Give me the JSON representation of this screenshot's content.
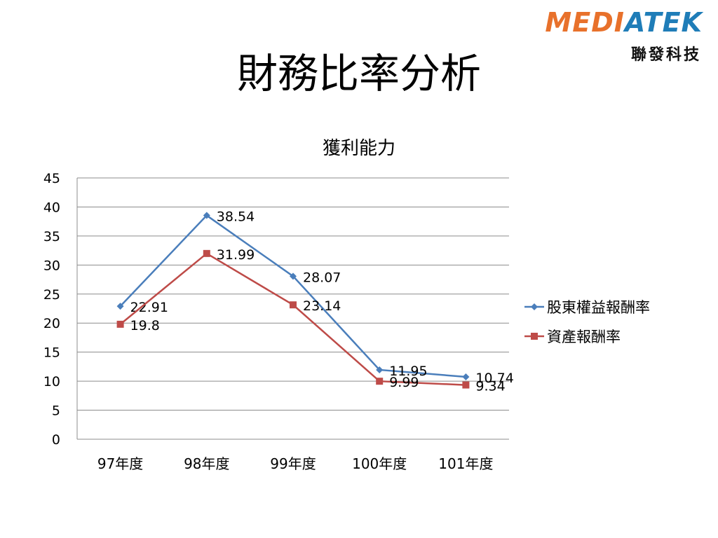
{
  "slide": {
    "title": "財務比率分析"
  },
  "logo": {
    "word_a": "MEDI",
    "word_b": "ATEK",
    "sub": "聯發科技",
    "orange": "#E8712B",
    "blue": "#1F7DB8"
  },
  "chart_data": {
    "type": "line",
    "title": "獲利能力",
    "categories": [
      "97年度",
      "98年度",
      "99年度",
      "100年度",
      "101年度"
    ],
    "series": [
      {
        "name": "股東權益報酬率",
        "values": [
          22.91,
          38.54,
          28.07,
          11.95,
          10.74
        ],
        "color": "#4A7EBB",
        "marker": "diamond"
      },
      {
        "name": "資產報酬率",
        "values": [
          19.8,
          31.99,
          23.14,
          9.99,
          9.34
        ],
        "color": "#BE4B48",
        "marker": "square"
      }
    ],
    "ylim": [
      0,
      45
    ],
    "yticks": [
      0,
      5,
      10,
      15,
      20,
      25,
      30,
      35,
      40,
      45
    ],
    "grid": true,
    "legend": "right",
    "xlabel": "",
    "ylabel": ""
  }
}
